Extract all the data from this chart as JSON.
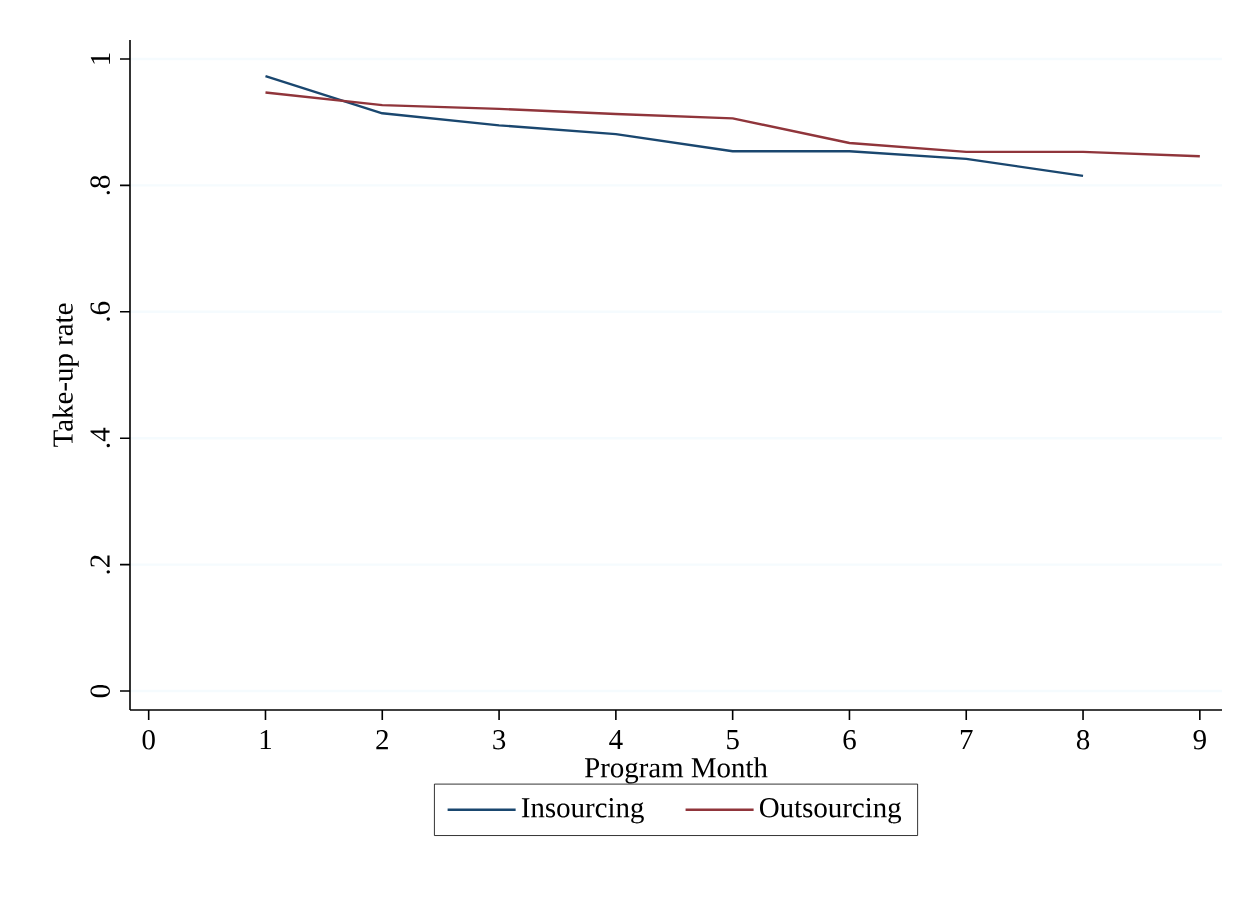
{
  "chart_data": {
    "type": "line",
    "xlabel": "Program Month",
    "ylabel": "Take-up rate",
    "x": [
      1,
      2,
      3,
      4,
      5,
      6,
      7,
      8,
      9
    ],
    "series": [
      {
        "name": "Insourcing",
        "color": "#1a476f",
        "values": [
          0.973,
          0.914,
          0.895,
          0.881,
          0.854,
          0.854,
          0.842,
          0.815,
          null
        ]
      },
      {
        "name": "Outsourcing",
        "color": "#90353b",
        "values": [
          0.947,
          0.927,
          0.921,
          0.913,
          0.906,
          0.867,
          0.853,
          0.853,
          0.846
        ]
      }
    ],
    "xlim": [
      -0.16,
      9.19
    ],
    "ylim": [
      -0.03,
      1.03
    ],
    "xticks": [
      0,
      1,
      2,
      3,
      4,
      5,
      6,
      7,
      8,
      9
    ],
    "yticks": [
      0,
      {
        "value": 0.2,
        "label": ".2"
      },
      {
        "value": 0.4,
        "label": ".4"
      },
      {
        "value": 0.6,
        "label": ".6"
      },
      {
        "value": 0.8,
        "label": ".8"
      },
      1
    ],
    "grid": "y",
    "legend": "bottom",
    "marker": "none",
    "line_style": "solid"
  }
}
